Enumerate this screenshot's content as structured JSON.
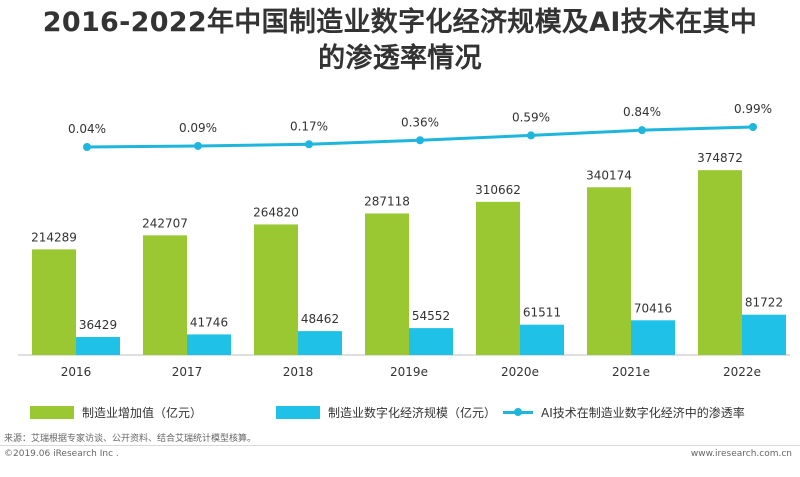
{
  "title_line1": "2016-2022年中国制造业数字化经济规模及AI技术在其中",
  "title_line2": "的渗透率情况",
  "source": "来源：艾瑞根据专家访谈、公开资料、结合艾瑞统计模型核算。",
  "copyright": "©2019.06 iResearch Inc .",
  "website": "www.iresearch.com.cn",
  "colors": {
    "bar1": "#9ac832",
    "bar2": "#1fc2e6",
    "line": "#1fb6dd",
    "text": "#333333"
  },
  "chart_data": {
    "type": "bar",
    "categories": [
      "2016",
      "2017",
      "2018",
      "2019e",
      "2020e",
      "2021e",
      "2022e"
    ],
    "series": [
      {
        "name": "制造业增加值（亿元）",
        "type": "bar",
        "values": [
          214289,
          242707,
          264820,
          287118,
          310662,
          340174,
          374872
        ]
      },
      {
        "name": "制造业数字化经济规模（亿元）",
        "type": "bar",
        "values": [
          36429,
          41746,
          48462,
          54552,
          61511,
          70416,
          81722
        ]
      },
      {
        "name": "AI技术在制造业数字化经济中的渗透率",
        "type": "line",
        "values": [
          0.04,
          0.09,
          0.17,
          0.36,
          0.59,
          0.84,
          0.99
        ],
        "labels": [
          "0.04%",
          "0.09%",
          "0.17%",
          "0.36%",
          "0.59%",
          "0.84%",
          "0.99%"
        ]
      }
    ],
    "bar_labels": [
      [
        "214289",
        "242707",
        "264820",
        "287118",
        "310662",
        "340174",
        "374872"
      ],
      [
        "36429",
        "41746",
        "48462",
        "54552",
        "61511",
        "70416",
        "81722"
      ]
    ],
    "grid": false,
    "legend_position": "bottom"
  }
}
